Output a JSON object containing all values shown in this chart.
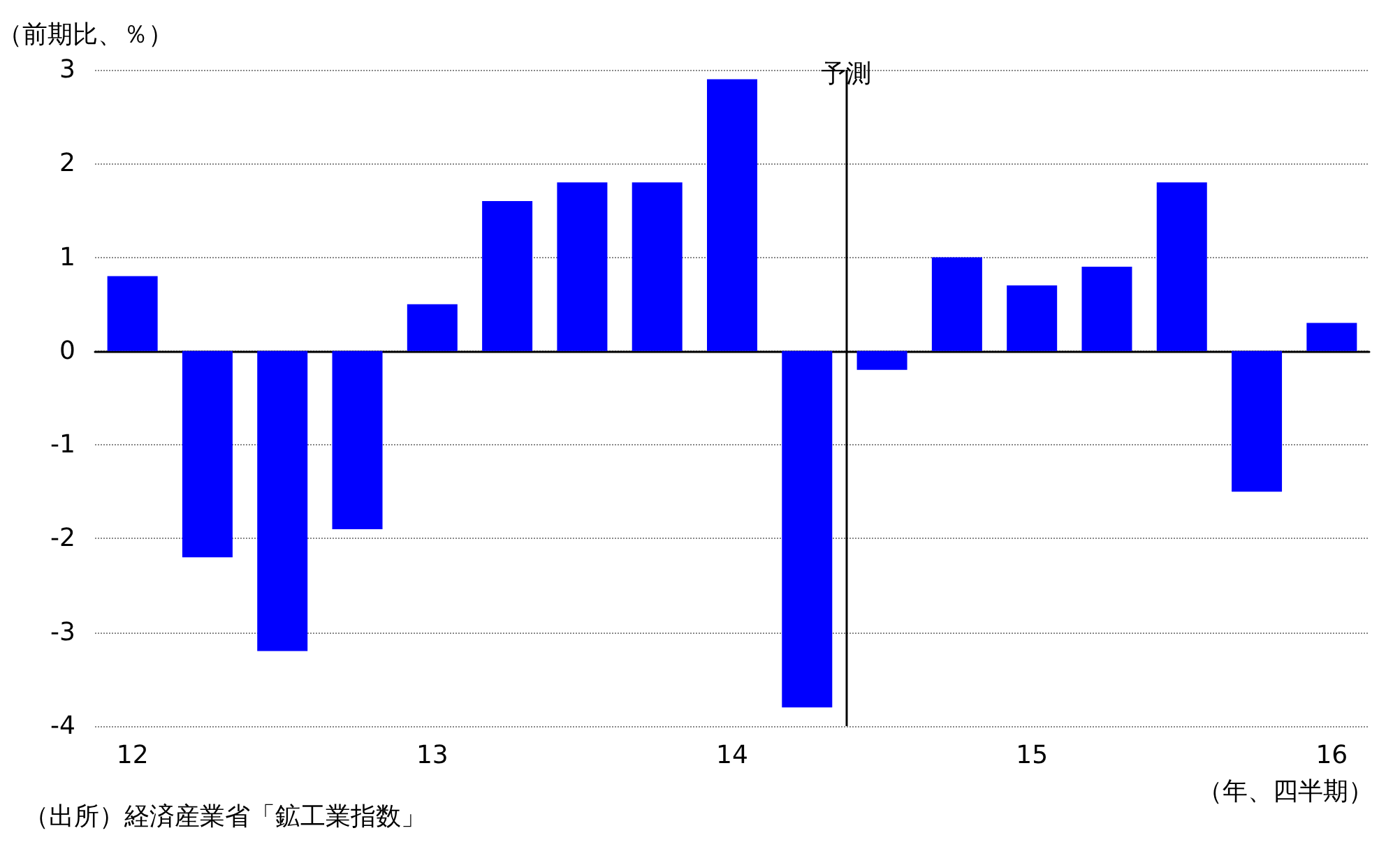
{
  "chart_data": {
    "type": "bar",
    "ylabel": "（前期比、％）",
    "xlabel": "（年、四半期）",
    "annotations": [
      "（出所）経済産業省「鉱工業指数」"
    ],
    "x": [
      12,
      12.25,
      12.5,
      12.75,
      13,
      13.25,
      13.5,
      13.75,
      14,
      14.25,
      14.5,
      14.75,
      15,
      15.25,
      15.5,
      15.75,
      16
    ],
    "series": [
      {
        "color": "#0000ff",
        "values": [
          0.8,
          -2.2,
          -3.2,
          -1.9,
          0.5,
          1.6,
          1.8,
          1.8,
          2.9,
          -3.8,
          -0.2,
          1.0,
          0.7,
          0.9,
          1.8,
          -1.5,
          0.3
        ]
      }
    ],
    "xlim": [
      11.875,
      16.125
    ],
    "xticks": [
      12,
      13,
      14,
      15,
      16
    ],
    "ylim": [
      -4,
      3
    ],
    "yticks": [
      -4,
      -3,
      -2,
      -1,
      0,
      1,
      2,
      3
    ],
    "ref_lines": [
      {
        "axis": "x",
        "value": 14.375,
        "label": "予測",
        "color": "#000000"
      }
    ],
    "grid": "y"
  }
}
